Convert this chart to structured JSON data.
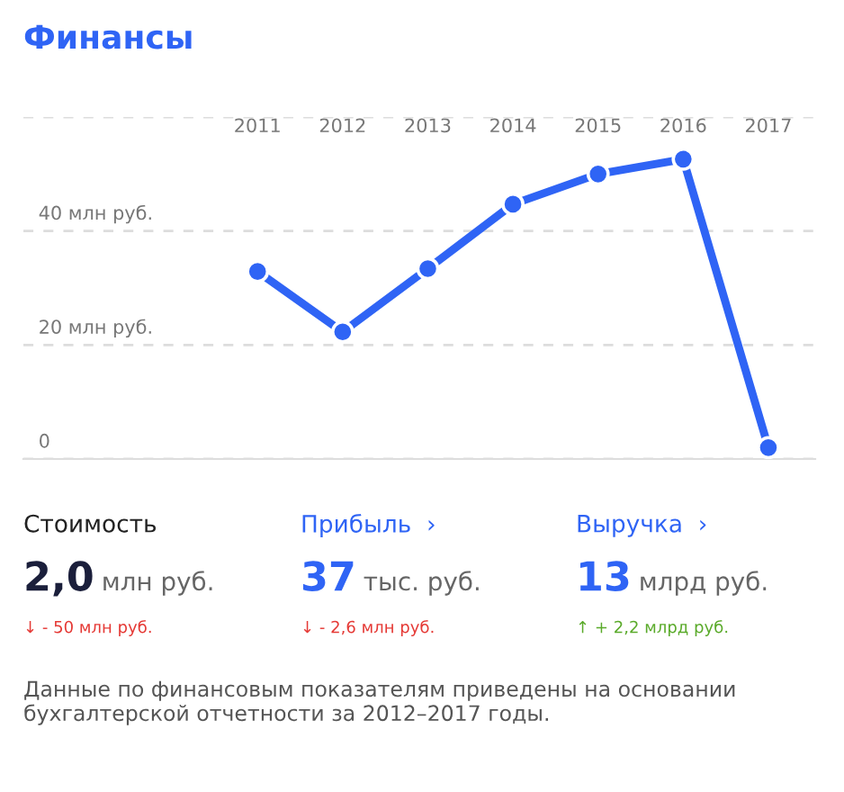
{
  "chart_data": {
    "type": "line",
    "title": "Финансы",
    "categories": [
      "2011",
      "2012",
      "2013",
      "2014",
      "2015",
      "2016",
      "2017"
    ],
    "series": [
      {
        "color": "#2f64f5",
        "values": [
          32.9,
          22.3,
          33.4,
          44.7,
          50.0,
          52.6,
          2.0
        ]
      }
    ],
    "ylim": [
      0,
      60
    ],
    "yticks": [
      {
        "value": 0,
        "label": "0"
      },
      {
        "value": 20,
        "label": "20 млн руб."
      },
      {
        "value": 40,
        "label": "40 млн руб."
      },
      {
        "value": 60,
        "label": null
      }
    ],
    "grid": "y",
    "marker": "circle",
    "line_style": "solid",
    "legend": false,
    "annotations": [
      "Стоимость",
      "2,0",
      "млн руб.",
      "↓ - 50 млн руб.",
      "Прибыль  ›",
      "37",
      "тыс. руб.",
      "↓ - 2,6 млн руб.",
      "Выручка  ›",
      "13",
      "млрд руб.",
      "↑ + 2,2 млрд руб.",
      "Данные по финансовым показателям приведены на основании бухгалтерской отчетности за 2012–2017 годы."
    ]
  }
}
